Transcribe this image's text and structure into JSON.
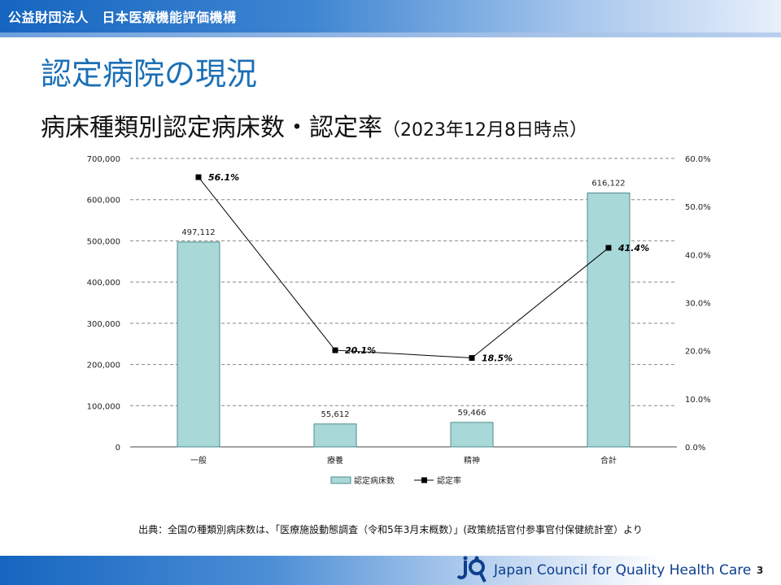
{
  "header": {
    "org_name": "公益財団法人　日本医療機能評価機構"
  },
  "slide": {
    "title": "認定病院の現況",
    "subtitle_main": "病床種類別認定病床数・認定率",
    "subtitle_date": "（2023年12月8日時点）"
  },
  "chart_data": {
    "type": "bar",
    "categories": [
      "一般",
      "療養",
      "精神",
      "合計"
    ],
    "series": [
      {
        "name": "認定病床数",
        "type": "bar",
        "axis": "left",
        "values": [
          497112,
          55612,
          59466,
          616122
        ],
        "labels": [
          "497,112",
          "55,612",
          "59,466",
          "616,122"
        ],
        "color": "#a8d8d8"
      },
      {
        "name": "認定率",
        "type": "line",
        "axis": "right",
        "values": [
          56.1,
          20.1,
          18.5,
          41.4
        ],
        "labels": [
          "56.1%",
          "20.1%",
          "18.5%",
          "41.4%"
        ],
        "color": "#000000"
      }
    ],
    "y_left": {
      "min": 0,
      "max": 700000,
      "ticks": [
        "0",
        "100,000",
        "200,000",
        "300,000",
        "400,000",
        "500,000",
        "600,000",
        "700,000"
      ]
    },
    "y_right": {
      "min": 0,
      "max": 60,
      "ticks": [
        "0.0%",
        "10.0%",
        "20.0%",
        "30.0%",
        "40.0%",
        "50.0%",
        "60.0%"
      ]
    },
    "grid": true,
    "legend_position": "bottom"
  },
  "source_note": "出典：全国の種類別病床数は、「医療施設動態調査（令和5年3月末概数）」(政策統括官付参事官付保健統計室）より",
  "footer": {
    "org_english": "Japan Council for Quality Health Care",
    "page_number": "3"
  }
}
